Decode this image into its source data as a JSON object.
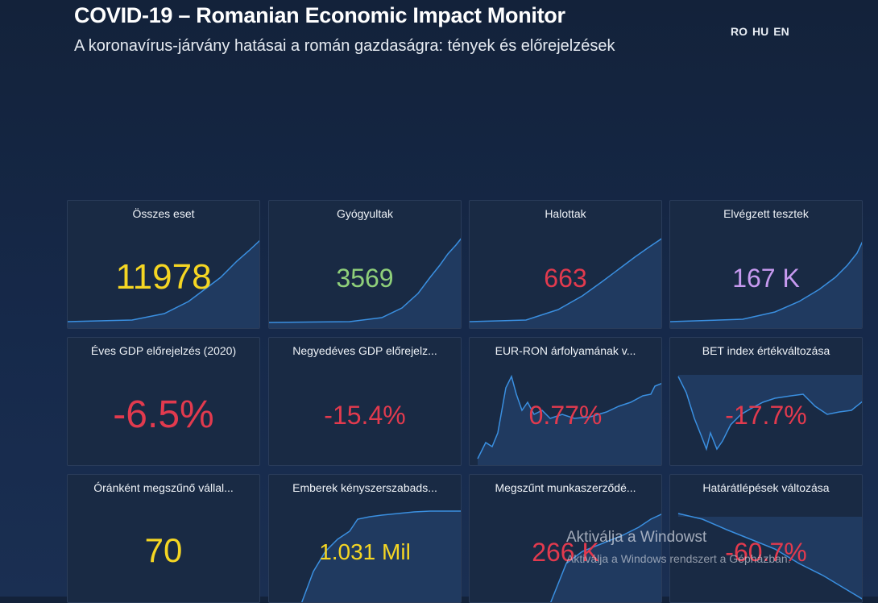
{
  "header": {
    "title": "COVID-19 – Romanian Economic Impact Monitor",
    "subtitle": "A koronavírus-járvány hatásai a román gazdaságra: tények és előrejelzések",
    "languages": [
      "RO",
      "HU",
      "EN"
    ]
  },
  "colors": {
    "background": "#16294a",
    "card": "#192a44",
    "yellow": "#f5d623",
    "green": "#8fd07a",
    "red": "#e23a4e",
    "purple": "#c79af0",
    "line": "#3a8fe0"
  },
  "cards": [
    {
      "title": "Összes eset",
      "value": "11978",
      "color": "yellow"
    },
    {
      "title": "Gyógyultak",
      "value": "3569",
      "color": "green"
    },
    {
      "title": "Halottak",
      "value": "663",
      "color": "red"
    },
    {
      "title": "Elvégzett tesztek",
      "value": "167 K",
      "color": "purple"
    },
    {
      "title": "Éves GDP előrejelzés (2020)",
      "value": "-6.5%",
      "color": "red"
    },
    {
      "title": "Negyedéves GDP előrejelz...",
      "value": "-15.4%",
      "color": "red"
    },
    {
      "title": "EUR-RON árfolyamának v...",
      "value": "0.77%",
      "color": "red"
    },
    {
      "title": "BET index értékváltozása",
      "value": "-17.7%",
      "color": "red"
    },
    {
      "title": "Óránként megszűnő vállal...",
      "value": "70",
      "color": "yellow"
    },
    {
      "title": "Emberek kényszerszabads...",
      "value": "1.031 Mil",
      "color": "yellow"
    },
    {
      "title": "Megszűnt munkaszerződé...",
      "value": "266 K",
      "color": "red"
    },
    {
      "title": "Határátlépések változása",
      "value": "-60.7%",
      "color": "red"
    }
  ],
  "watermark": {
    "line1": "Aktiválja a Windowst",
    "line2": "Aktiválja a Windows rendszert a Gépházban."
  }
}
